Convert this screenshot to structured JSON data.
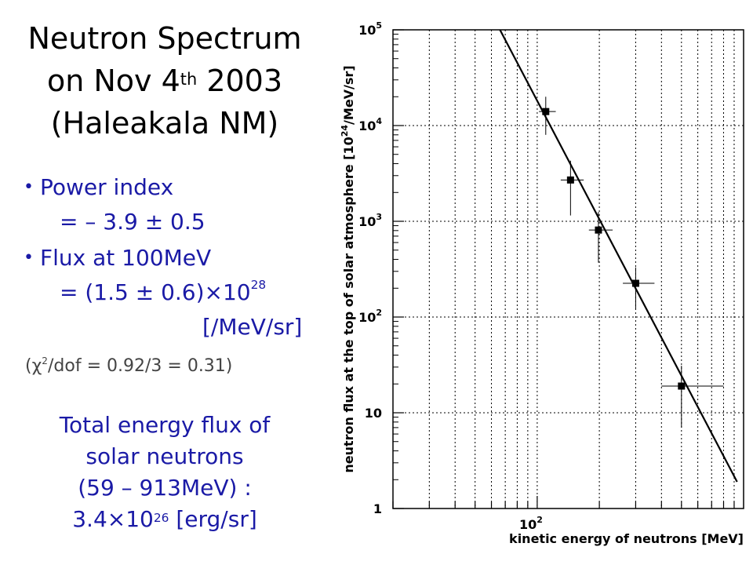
{
  "title": {
    "line1": "Neutron Spectrum",
    "line2_pre": "on Nov 4",
    "line2_sup": "th",
    "line2_post": " 2003",
    "line3": "(Haleakala NM)"
  },
  "bullets": {
    "power_label": "Power index",
    "power_value": "= – 3.9 ± 0.5",
    "flux_label": "Flux at 100MeV",
    "flux_value_pre": "= (1.5 ± 0.6)×10",
    "flux_value_sup": "28",
    "flux_unit": "[/MeV/sr]"
  },
  "chi": {
    "pre": "(χ",
    "sup": "2",
    "post": "/dof = 0.92/3 = 0.31)"
  },
  "total": {
    "line1": "Total energy flux of",
    "line2": "solar neutrons",
    "line3": "(59 – 913MeV) :",
    "line4_pre": "3.4×10",
    "line4_sup": "26",
    "line4_post": " [erg/sr]"
  },
  "chart_data": {
    "type": "scatter",
    "xlabel": "kinetic energy of neutrons [MeV]",
    "ylabel_pre": "neutron flux at the top of solar atmosphere [10",
    "ylabel_sup": "24",
    "ylabel_post": "/MeV/sr]",
    "xscale": "log",
    "yscale": "log",
    "xlim": [
      20,
      1000
    ],
    "ylim": [
      1,
      100000
    ],
    "grid": true,
    "x_tick_labels": [
      {
        "value": 100,
        "base": "10",
        "exp": "2"
      }
    ],
    "y_tick_labels": [
      {
        "value": 1,
        "base": "1",
        "exp": ""
      },
      {
        "value": 10,
        "base": "10",
        "exp": ""
      },
      {
        "value": 100,
        "base": "10",
        "exp": "2"
      },
      {
        "value": 1000,
        "base": "10",
        "exp": "3"
      },
      {
        "value": 10000,
        "base": "10",
        "exp": "4"
      },
      {
        "value": 100000,
        "base": "10",
        "exp": "5"
      }
    ],
    "points": [
      {
        "x": 110,
        "y": 14000,
        "xerr": [
          102,
          123
        ],
        "yerr": [
          8000,
          20000
        ]
      },
      {
        "x": 145,
        "y": 2700,
        "xerr": [
          130,
          168
        ],
        "yerr": [
          1150,
          4300
        ]
      },
      {
        "x": 198,
        "y": 810,
        "xerr": [
          178,
          232
        ],
        "yerr": [
          370,
          1250
        ]
      },
      {
        "x": 300,
        "y": 225,
        "xerr": [
          260,
          370
        ],
        "yerr": [
          120,
          330
        ]
      },
      {
        "x": 500,
        "y": 19,
        "xerr": [
          400,
          800
        ],
        "yerr": [
          7,
          31
        ]
      }
    ],
    "fit": {
      "x": [
        66,
        930
      ],
      "y": [
        100000,
        1.9
      ]
    },
    "colors": {
      "text_blue": "#1a1aa6",
      "marker": "#000000",
      "grid": "#000000"
    }
  }
}
